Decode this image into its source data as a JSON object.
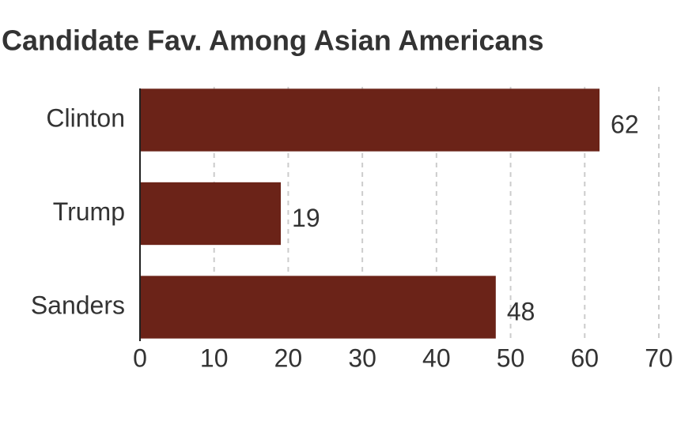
{
  "chart_data": {
    "type": "bar",
    "orientation": "horizontal",
    "title": "Candidate Fav. Among Asian Americans",
    "categories": [
      "Clinton",
      "Trump",
      "Sanders"
    ],
    "values": [
      62,
      19,
      48
    ],
    "color": "#6b2318",
    "xlim": [
      0,
      70
    ],
    "xticks": [
      0,
      10,
      20,
      30,
      40,
      50,
      60,
      70
    ],
    "grid": true
  }
}
